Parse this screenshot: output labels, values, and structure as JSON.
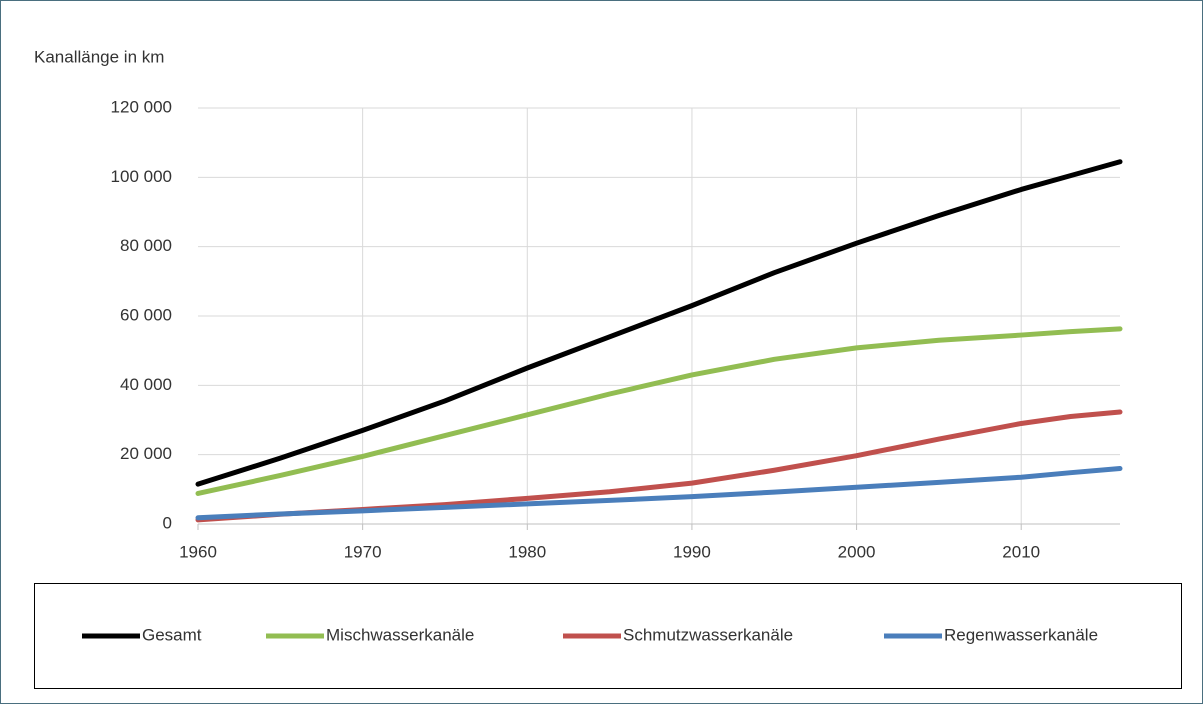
{
  "chart_data": {
    "type": "line",
    "title": "Kanallänge in km",
    "x": [
      1960,
      1965,
      1970,
      1975,
      1980,
      1985,
      1990,
      1995,
      2000,
      2005,
      2010,
      2013,
      2016
    ],
    "series": [
      {
        "name": "Gesamt",
        "color": "#000000",
        "values": [
          11500,
          19000,
          27000,
          35500,
          45000,
          54000,
          63000,
          72500,
          81000,
          89000,
          96500,
          100500,
          104500
        ]
      },
      {
        "name": "Mischwasserkanäle",
        "color": "#92bd52",
        "values": [
          8800,
          14000,
          19500,
          25500,
          31500,
          37500,
          43000,
          47500,
          50800,
          53000,
          54500,
          55500,
          56300
        ]
      },
      {
        "name": "Schmutzwasserkanäle",
        "color": "#c0504d",
        "values": [
          1200,
          2800,
          4200,
          5600,
          7400,
          9300,
          11800,
          15500,
          19700,
          24500,
          29000,
          31000,
          32300
        ]
      },
      {
        "name": "Regenwasserkanäle",
        "color": "#4a7ebb",
        "values": [
          1800,
          2900,
          3800,
          4800,
          5800,
          6800,
          7900,
          9200,
          10600,
          12000,
          13500,
          14800,
          16000
        ]
      }
    ],
    "xlim": [
      1960,
      2016
    ],
    "xticks": [
      1960,
      1970,
      1980,
      1990,
      2000,
      2010
    ],
    "ylim": [
      0,
      120000
    ],
    "yticks": [
      0,
      {
        "value": 20000,
        "label": "20 000"
      },
      {
        "value": 40000,
        "label": "40 000"
      },
      {
        "value": 60000,
        "label": "60 000"
      },
      {
        "value": 80000,
        "label": "80 000"
      },
      {
        "value": 100000,
        "label": "100 000"
      },
      {
        "value": 120000,
        "label": "120 000"
      }
    ],
    "grid": true,
    "legend": "bottom"
  }
}
